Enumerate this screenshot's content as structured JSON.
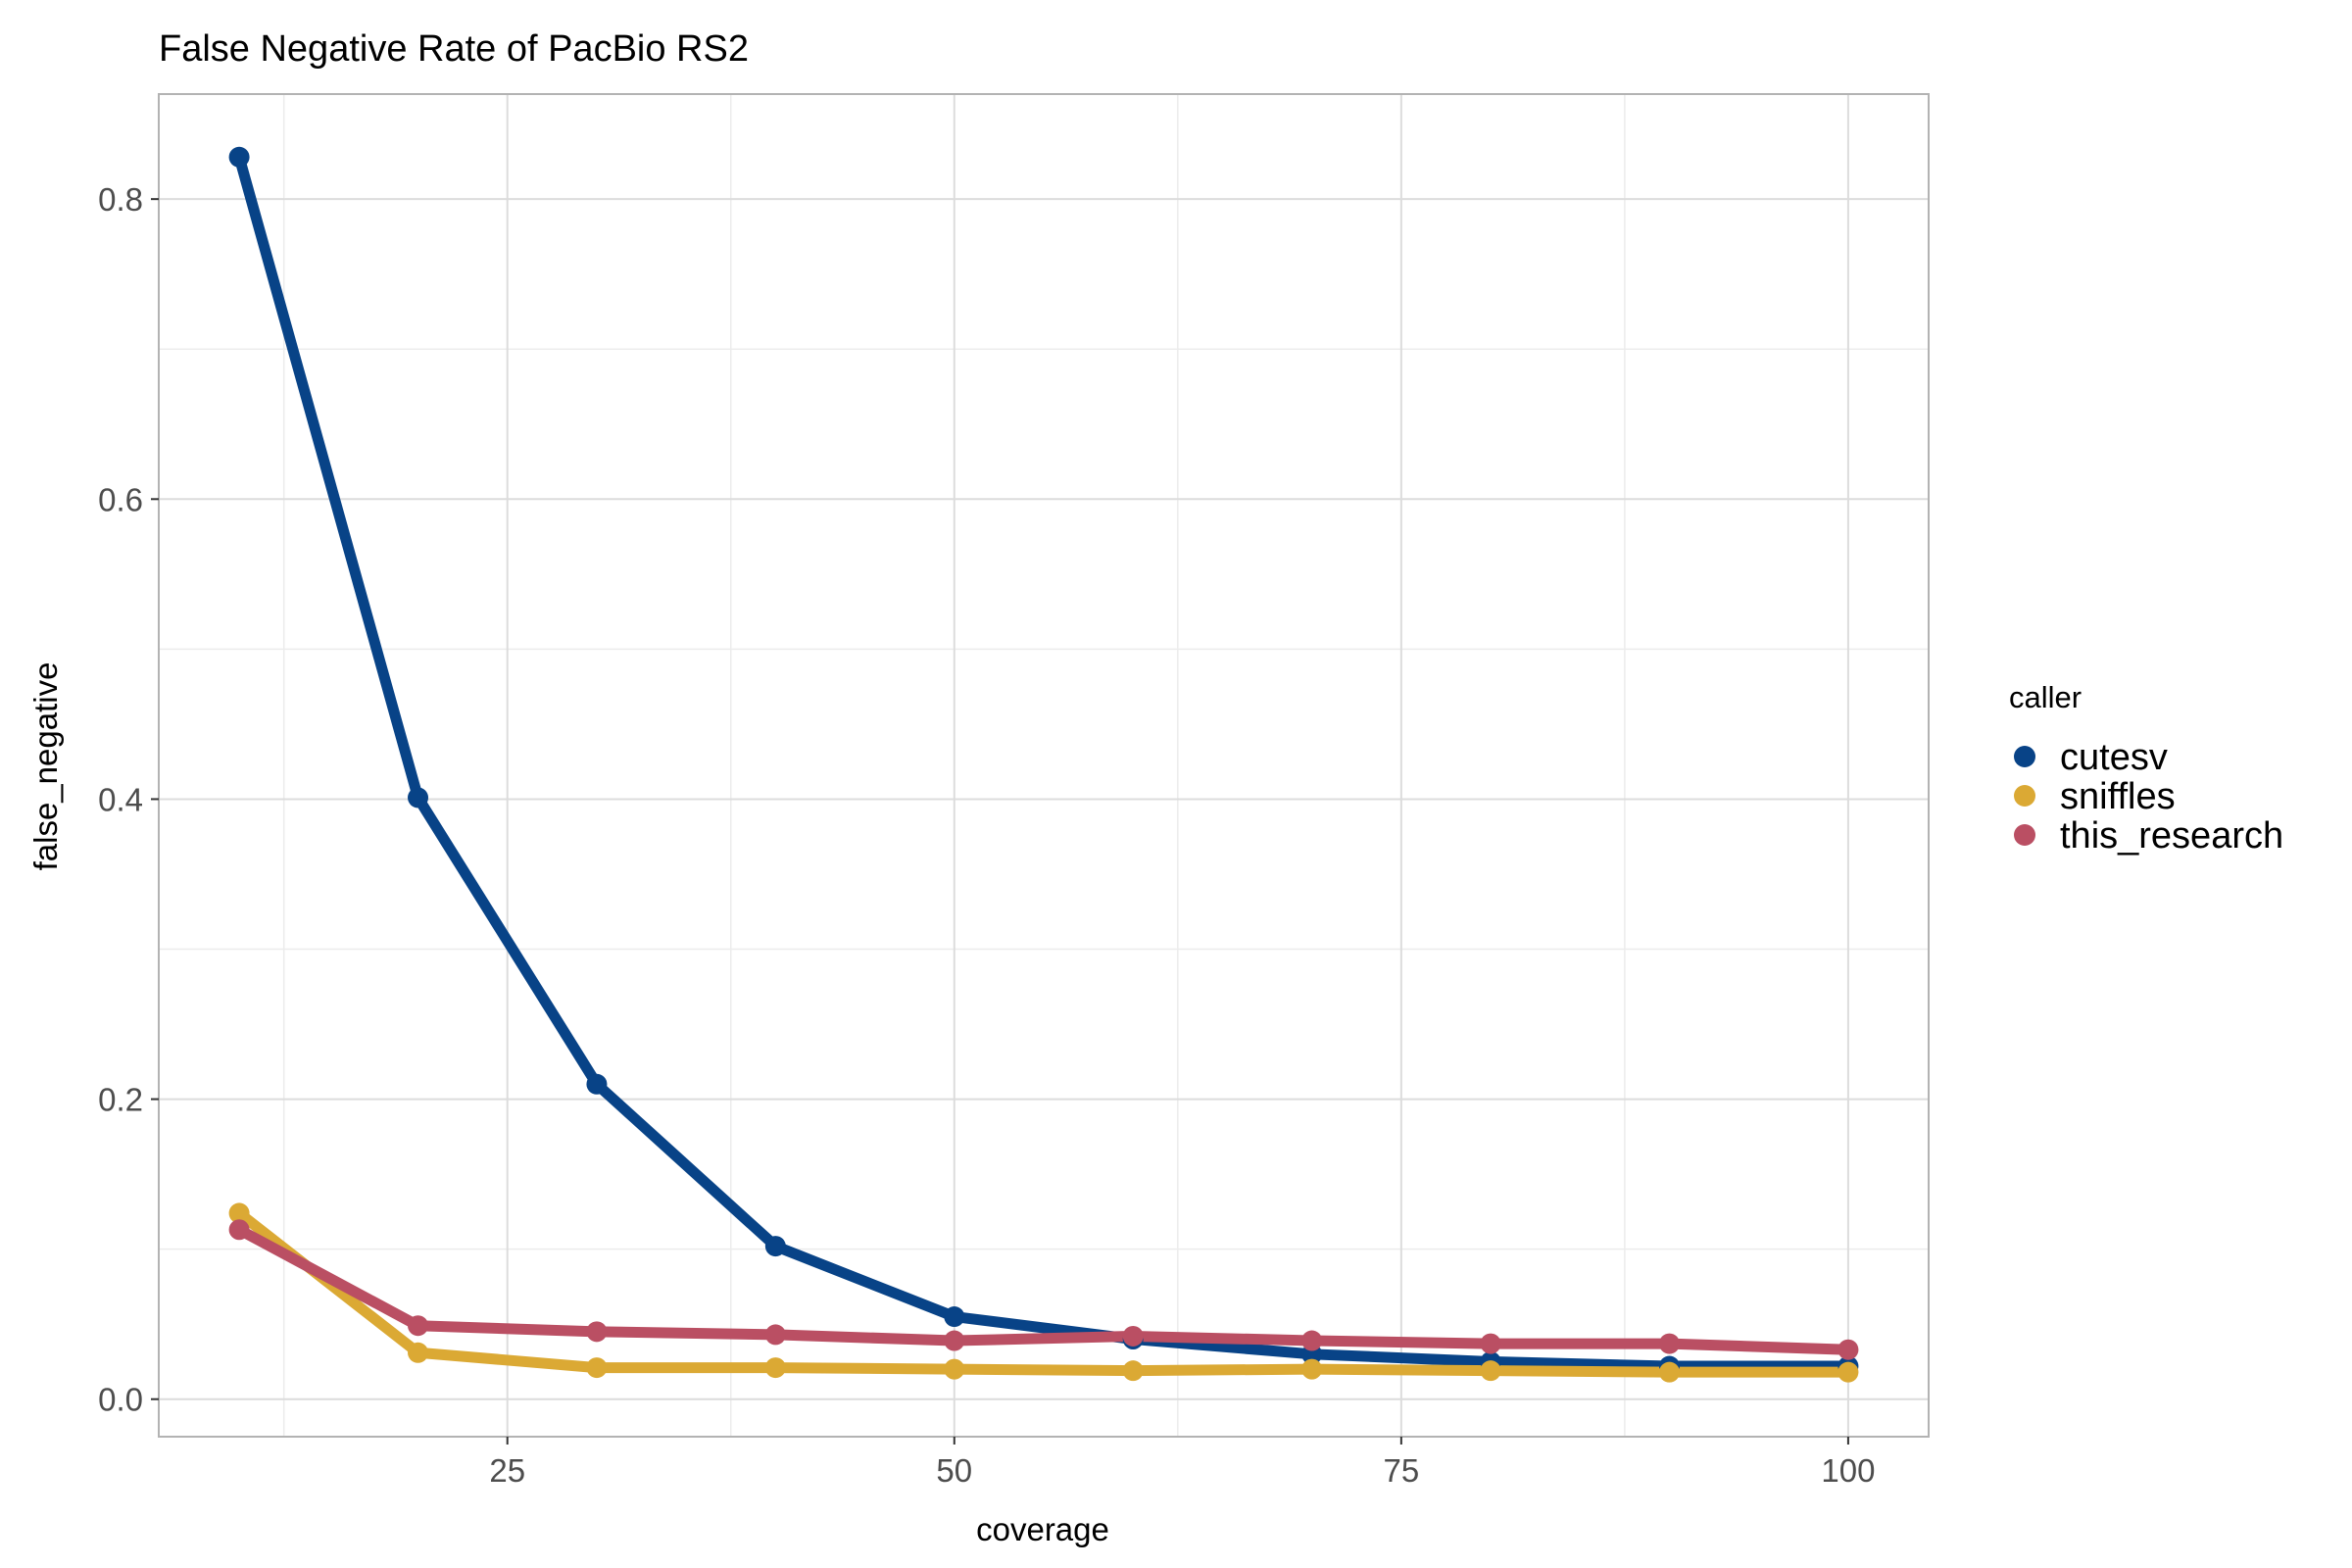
{
  "chart_data": {
    "type": "line",
    "title": "False Negative Rate of PacBio RS2",
    "xlabel": "coverage",
    "ylabel": "false_negative",
    "xlim": [
      5.5,
      104.5
    ],
    "ylim": [
      -0.025,
      0.87
    ],
    "x_ticks": [
      25,
      50,
      75,
      100
    ],
    "x_tick_labels": [
      "25",
      "50",
      "75",
      "100"
    ],
    "x_minor_ticks": [
      12.5,
      37.5,
      62.5,
      87.5
    ],
    "y_ticks": [
      0.0,
      0.2,
      0.4,
      0.6,
      0.8
    ],
    "y_tick_labels": [
      "0.0",
      "0.2",
      "0.4",
      "0.6",
      "0.8"
    ],
    "y_minor_ticks": [
      0.1,
      0.3,
      0.5,
      0.7
    ],
    "grid": true,
    "legend": {
      "title": "caller",
      "position": "right"
    },
    "x": [
      10,
      20,
      30,
      40,
      50,
      60,
      70,
      80,
      90,
      100
    ],
    "series": [
      {
        "name": "cutesv",
        "color": "#084387",
        "values": [
          0.828,
          0.401,
          0.21,
          0.102,
          0.055,
          0.04,
          0.03,
          0.025,
          0.022,
          0.022
        ]
      },
      {
        "name": "sniffles",
        "color": "#DBA934",
        "values": [
          0.124,
          0.031,
          0.021,
          0.021,
          0.02,
          0.019,
          0.02,
          0.019,
          0.018,
          0.018
        ]
      },
      {
        "name": "this_research",
        "color": "#BA4F63",
        "values": [
          0.113,
          0.049,
          0.045,
          0.043,
          0.039,
          0.042,
          0.039,
          0.037,
          0.037,
          0.033
        ]
      }
    ]
  }
}
